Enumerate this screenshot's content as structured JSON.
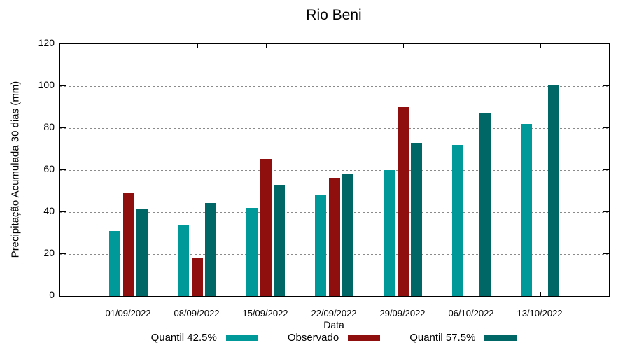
{
  "chart_data": {
    "type": "bar",
    "title": "Rio Beni",
    "xlabel": "Data",
    "ylabel": "Precipitação Acumulada 30 dias (mm)",
    "ylim": [
      0,
      120
    ],
    "y_ticks": [
      0,
      20,
      40,
      60,
      80,
      100,
      120
    ],
    "grid": "horizontal-dotted",
    "legend_position": "bottom-center",
    "categories": [
      "01/09/2022",
      "08/09/2022",
      "15/09/2022",
      "22/09/2022",
      "29/09/2022",
      "06/10/2022",
      "13/10/2022"
    ],
    "series": [
      {
        "name": "Quantil 42.5%",
        "color": "#009999",
        "values": [
          31,
          34,
          42,
          48.5,
          60,
          72,
          82
        ]
      },
      {
        "name": "Observado",
        "color": "#8F0E0E",
        "values": [
          49,
          18.5,
          65.5,
          56.5,
          90,
          null,
          null
        ]
      },
      {
        "name": "Quantil 57.5%",
        "color": "#006666",
        "values": [
          41.5,
          44.5,
          53,
          58.5,
          73,
          87,
          100.5
        ]
      }
    ],
    "axis_color": "#000000",
    "grid_color": "#8a8a8a"
  }
}
